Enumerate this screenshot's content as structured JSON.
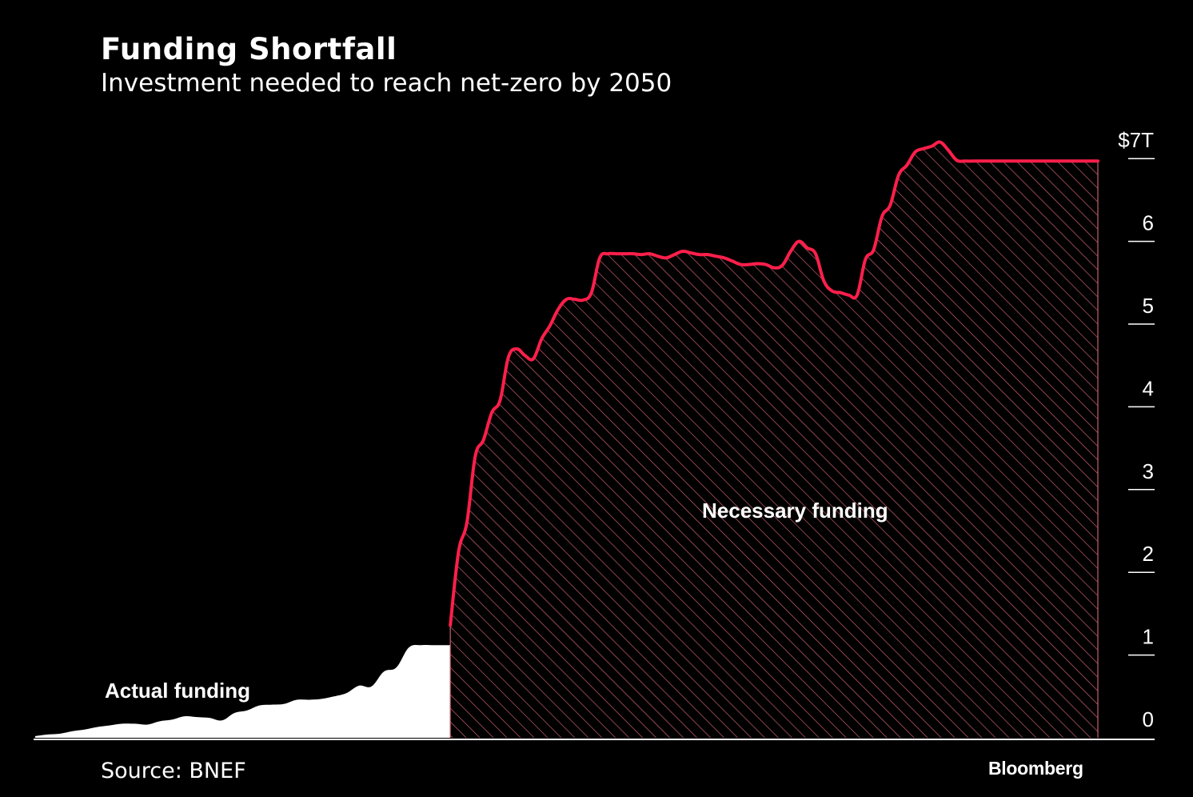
{
  "header": {
    "title": "Funding Shortfall",
    "subtitle": "Investment needed to reach net-zero by 2050"
  },
  "footer": {
    "source": "Source: BNEF",
    "brand": "Bloomberg"
  },
  "colors": {
    "background": "#000000",
    "actual_fill": "#ffffff",
    "necessary_line": "#ff1f4b",
    "necessary_hatch": "#c8606e",
    "text": "#ffffff"
  },
  "chart_data": {
    "type": "area",
    "title": "Funding Shortfall",
    "subtitle": "Investment needed to reach net-zero by 2050",
    "ylim": [
      0,
      7
    ],
    "y_ticks": [
      {
        "value": 7,
        "label": "$7T"
      },
      {
        "value": 6,
        "label": "6"
      },
      {
        "value": 5,
        "label": "5"
      },
      {
        "value": 4,
        "label": "4"
      },
      {
        "value": 3,
        "label": "3"
      },
      {
        "value": 2,
        "label": "2"
      },
      {
        "value": 1,
        "label": "1"
      },
      {
        "value": 0,
        "label": "0"
      }
    ],
    "x_axis_labels": "none",
    "series": [
      {
        "name": "Actual funding",
        "label": "Actual funding",
        "x": [
          0,
          3,
          6,
          9,
          12,
          15,
          18,
          21,
          24,
          27,
          30,
          33,
          36,
          39,
          42,
          45,
          48,
          51,
          54,
          57,
          60,
          63,
          66,
          69,
          72,
          75,
          78,
          81,
          84,
          87,
          90,
          93,
          96,
          99,
          100
        ],
        "values": [
          0.02,
          0.04,
          0.05,
          0.08,
          0.1,
          0.13,
          0.15,
          0.17,
          0.17,
          0.16,
          0.2,
          0.22,
          0.26,
          0.25,
          0.24,
          0.21,
          0.3,
          0.33,
          0.39,
          0.4,
          0.41,
          0.46,
          0.46,
          0.47,
          0.5,
          0.54,
          0.63,
          0.62,
          0.8,
          0.85,
          1.09,
          1.12,
          1.12,
          1.12,
          1.12
        ]
      },
      {
        "name": "Necessary funding",
        "label": "Necessary funding",
        "x": [
          100,
          102,
          104,
          106,
          108,
          110,
          112,
          114,
          116,
          118,
          120,
          122,
          124,
          126,
          128,
          130,
          132,
          134,
          136,
          138,
          140,
          142,
          144,
          146,
          148,
          150,
          152,
          154,
          156,
          158,
          160,
          162,
          164,
          166,
          168,
          170,
          172,
          174,
          176,
          178,
          180,
          182,
          184,
          186,
          188,
          190,
          192,
          194,
          196,
          198,
          200,
          202,
          204,
          206,
          208,
          210,
          212,
          214,
          216,
          218,
          220,
          222,
          224,
          226,
          228,
          230,
          232,
          234,
          236,
          238,
          240,
          242,
          244,
          246,
          248,
          250,
          252,
          254,
          256
        ],
        "values": [
          1.36,
          2.25,
          2.6,
          3.4,
          3.6,
          3.93,
          4.08,
          4.6,
          4.7,
          4.62,
          4.58,
          4.82,
          4.98,
          5.18,
          5.3,
          5.3,
          5.29,
          5.38,
          5.8,
          5.85,
          5.85,
          5.85,
          5.85,
          5.84,
          5.85,
          5.82,
          5.8,
          5.84,
          5.88,
          5.86,
          5.84,
          5.84,
          5.82,
          5.8,
          5.76,
          5.72,
          5.72,
          5.73,
          5.72,
          5.68,
          5.71,
          5.88,
          6.0,
          5.92,
          5.85,
          5.52,
          5.4,
          5.38,
          5.35,
          5.35,
          5.78,
          5.9,
          6.3,
          6.44,
          6.8,
          6.92,
          7.08,
          7.12,
          7.15,
          7.2,
          7.1,
          6.98,
          6.97,
          6.97,
          6.97,
          6.97,
          6.97,
          6.97,
          6.97,
          6.97,
          6.97,
          6.97,
          6.97,
          6.97,
          6.97,
          6.97,
          6.97,
          6.97,
          6.97
        ]
      }
    ],
    "legend": "inline annotations"
  }
}
